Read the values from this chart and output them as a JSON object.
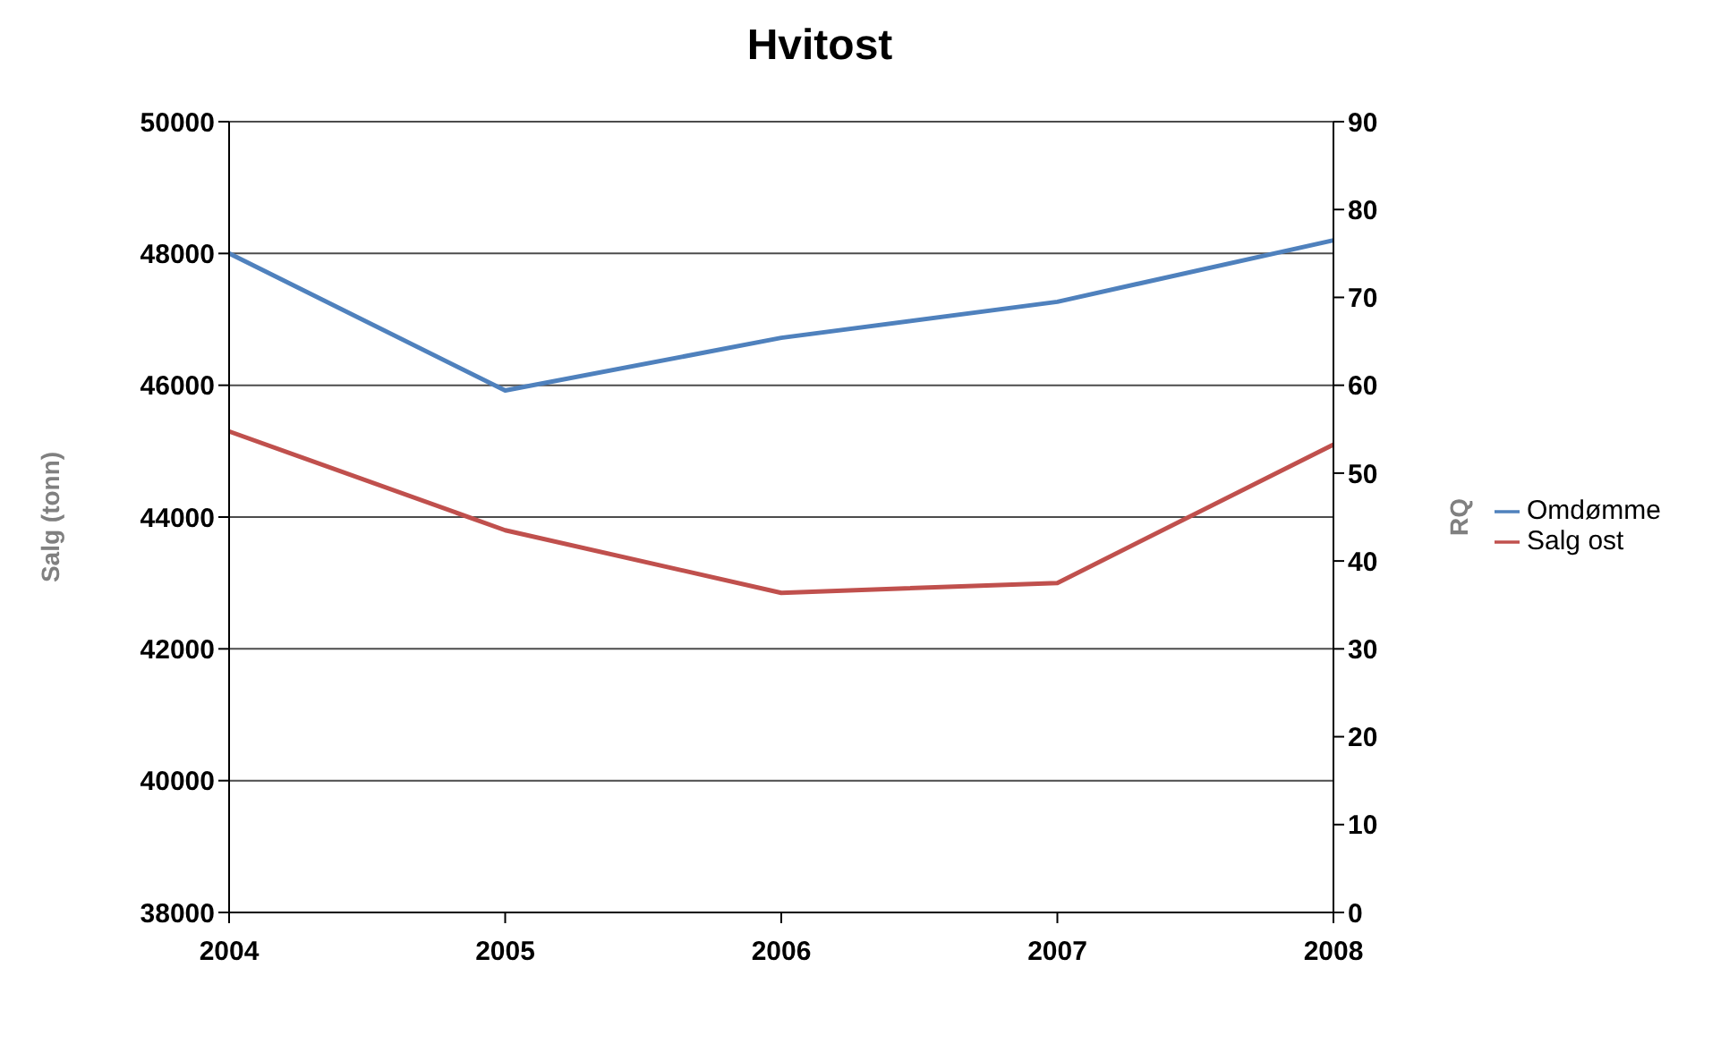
{
  "chart_data": {
    "type": "line",
    "title": "Hvitost",
    "ylabel": "Salg (tonn)",
    "y2label": "RQ",
    "categories": [
      "2004",
      "2005",
      "2006",
      "2007",
      "2008"
    ],
    "series": [
      {
        "name": "Salg ost",
        "color": "#c0504d",
        "values": [
          45300,
          43800,
          42850,
          43000,
          45100
        ]
      },
      {
        "name": "Omdømme",
        "color": "#4f81bd",
        "values": [
          75,
          59.4,
          65.4,
          69.5,
          76.5
        ],
        "axis": "y2"
      }
    ],
    "ylim": [
      38000,
      50000
    ],
    "yticks": [
      38000,
      40000,
      42000,
      44000,
      46000,
      48000,
      50000
    ],
    "y2lim": [
      0,
      90
    ],
    "y2ticks": [
      0,
      10,
      20,
      30,
      40,
      50,
      60,
      70,
      80,
      90
    ],
    "grid": "y",
    "legend": "right",
    "marker": "none",
    "line_style": "solid"
  }
}
